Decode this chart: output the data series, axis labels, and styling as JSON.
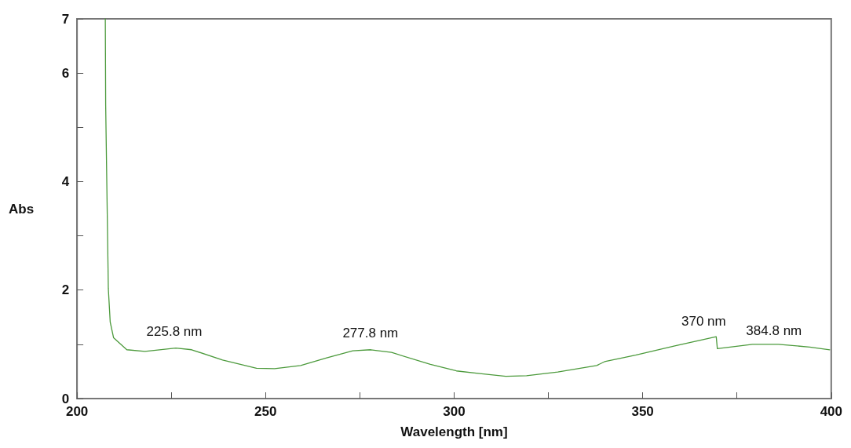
{
  "chart_data": {
    "type": "line",
    "xlabel": "Wavelength [nm]",
    "ylabel": "Abs",
    "x": [
      207.5,
      207.6,
      208.3,
      208.8,
      209.7,
      213.2,
      218.0,
      226.2,
      230.4,
      238.6,
      247.6,
      252.4,
      259.3,
      266.2,
      273.1,
      277.9,
      283.4,
      293.7,
      300.6,
      306.8,
      313.7,
      319.2,
      327.5,
      337.8,
      339.9,
      348.1,
      358.5,
      369.5,
      369.8,
      379.1,
      386.0,
      394.3,
      399.6
    ],
    "series": [
      {
        "color": "#4c9a3c",
        "values": [
          7,
          5.4,
          2.03,
          1.41,
          1.12,
          0.9,
          0.87,
          0.93,
          0.9,
          0.71,
          0.56,
          0.55,
          0.61,
          0.75,
          0.88,
          0.9,
          0.85,
          0.63,
          0.51,
          0.46,
          0.41,
          0.42,
          0.49,
          0.61,
          0.68,
          0.8,
          0.97,
          1.14,
          0.92,
          1.0,
          1.0,
          0.95,
          0.9
        ]
      }
    ],
    "annotations": [
      {
        "text": "225.8 nm",
        "x": 225.8,
        "y": 0.93
      },
      {
        "text": "277.8 nm",
        "x": 277.8,
        "y": 0.9
      },
      {
        "text": "370 nm",
        "x": 370,
        "y": 1.14
      },
      {
        "text": "384.8 nm",
        "x": 384.8,
        "y": 1.0
      }
    ],
    "xlim": [
      200,
      400
    ],
    "ylim": [
      0,
      7
    ],
    "xticks": [
      200,
      {
        "value": 225,
        "label": null
      },
      250,
      {
        "value": 275,
        "label": null
      },
      300,
      {
        "value": 325,
        "label": null
      },
      350,
      {
        "value": 375,
        "label": null
      },
      400
    ],
    "yticks": [
      0,
      {
        "value": 1,
        "label": null
      },
      2,
      {
        "value": 3,
        "label": null
      },
      4,
      {
        "value": 5,
        "label": null
      },
      6,
      7
    ],
    "grid": false,
    "marker": "none",
    "line_style": "solid"
  }
}
